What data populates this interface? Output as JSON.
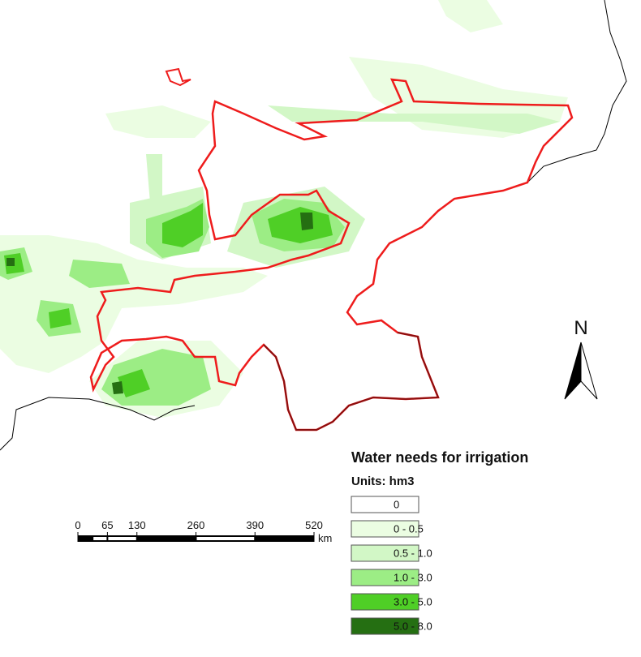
{
  "map": {
    "north_label": "N",
    "legend": {
      "title": "Water needs for irrigation",
      "units": "Units: hm3",
      "items": [
        {
          "label": "0",
          "color": "#ffffff"
        },
        {
          "label": "0 - 0.5",
          "color": "#ebfde2"
        },
        {
          "label": "0.5 - 1.0",
          "color": "#d2f7c6"
        },
        {
          "label": "1.0 - 3.0",
          "color": "#9ced85"
        },
        {
          "label": "3.0 - 5.0",
          "color": "#4fcf26"
        },
        {
          "label": "5.0 - 8.0",
          "color": "#256f12"
        }
      ]
    },
    "scale_bar": {
      "ticks": [
        0,
        65,
        130,
        260,
        390,
        520
      ],
      "unit": "km"
    }
  }
}
